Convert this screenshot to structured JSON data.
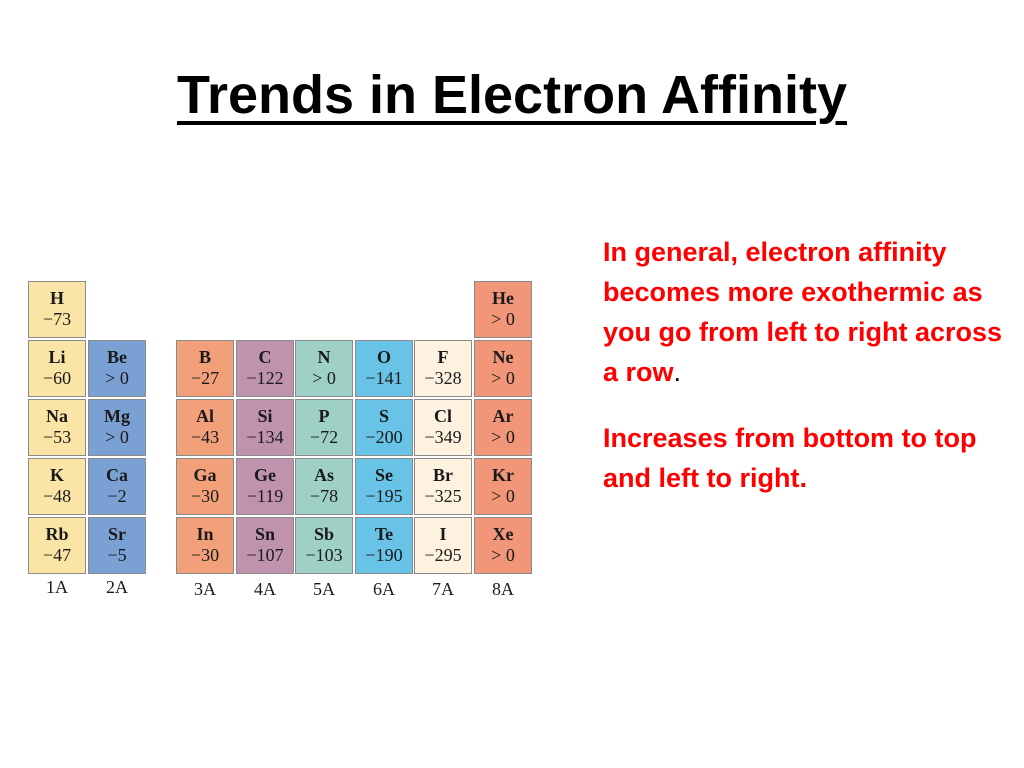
{
  "title": "Trends in Electron Affinity",
  "colors": {
    "group_1A": "#fbe5a6",
    "group_2A": "#7aa0d4",
    "group_3A": "#f2a07a",
    "group_4A": "#bf93ae",
    "group_5A": "#9fd0c5",
    "group_6A": "#68c3e6",
    "group_7A": "#fdf2df",
    "group_8A": "#f2967a",
    "bullet_text": "#ff0000"
  },
  "periodic_table": {
    "groups": [
      "1A",
      "2A",
      "3A",
      "4A",
      "5A",
      "6A",
      "7A",
      "8A"
    ],
    "elements": [
      {
        "symbol": "H",
        "value": "−73",
        "group": "1A",
        "period": 1
      },
      {
        "symbol": "He",
        "value": "> 0",
        "group": "8A",
        "period": 1
      },
      {
        "symbol": "Li",
        "value": "−60",
        "group": "1A",
        "period": 2
      },
      {
        "symbol": "Be",
        "value": "> 0",
        "group": "2A",
        "period": 2
      },
      {
        "symbol": "B",
        "value": "−27",
        "group": "3A",
        "period": 2
      },
      {
        "symbol": "C",
        "value": "−122",
        "group": "4A",
        "period": 2
      },
      {
        "symbol": "N",
        "value": "> 0",
        "group": "5A",
        "period": 2
      },
      {
        "symbol": "O",
        "value": "−141",
        "group": "6A",
        "period": 2
      },
      {
        "symbol": "F",
        "value": "−328",
        "group": "7A",
        "period": 2
      },
      {
        "symbol": "Ne",
        "value": "> 0",
        "group": "8A",
        "period": 2
      },
      {
        "symbol": "Na",
        "value": "−53",
        "group": "1A",
        "period": 3
      },
      {
        "symbol": "Mg",
        "value": "> 0",
        "group": "2A",
        "period": 3
      },
      {
        "symbol": "Al",
        "value": "−43",
        "group": "3A",
        "period": 3
      },
      {
        "symbol": "Si",
        "value": "−134",
        "group": "4A",
        "period": 3
      },
      {
        "symbol": "P",
        "value": "−72",
        "group": "5A",
        "period": 3
      },
      {
        "symbol": "S",
        "value": "−200",
        "group": "6A",
        "period": 3
      },
      {
        "symbol": "Cl",
        "value": "−349",
        "group": "7A",
        "period": 3
      },
      {
        "symbol": "Ar",
        "value": "> 0",
        "group": "8A",
        "period": 3
      },
      {
        "symbol": "K",
        "value": "−48",
        "group": "1A",
        "period": 4
      },
      {
        "symbol": "Ca",
        "value": "−2",
        "group": "2A",
        "period": 4
      },
      {
        "symbol": "Ga",
        "value": "−30",
        "group": "3A",
        "period": 4
      },
      {
        "symbol": "Ge",
        "value": "−119",
        "group": "4A",
        "period": 4
      },
      {
        "symbol": "As",
        "value": "−78",
        "group": "5A",
        "period": 4
      },
      {
        "symbol": "Se",
        "value": "−195",
        "group": "6A",
        "period": 4
      },
      {
        "symbol": "Br",
        "value": "−325",
        "group": "7A",
        "period": 4
      },
      {
        "symbol": "Kr",
        "value": "> 0",
        "group": "8A",
        "period": 4
      },
      {
        "symbol": "Rb",
        "value": "−47",
        "group": "1A",
        "period": 5
      },
      {
        "symbol": "Sr",
        "value": "−5",
        "group": "2A",
        "period": 5
      },
      {
        "symbol": "In",
        "value": "−30",
        "group": "3A",
        "period": 5
      },
      {
        "symbol": "Sn",
        "value": "−107",
        "group": "4A",
        "period": 5
      },
      {
        "symbol": "Sb",
        "value": "−103",
        "group": "5A",
        "period": 5
      },
      {
        "symbol": "Te",
        "value": "−190",
        "group": "6A",
        "period": 5
      },
      {
        "symbol": "I",
        "value": "−295",
        "group": "7A",
        "period": 5
      },
      {
        "symbol": "Xe",
        "value": "> 0",
        "group": "8A",
        "period": 5
      }
    ]
  },
  "bullets": {
    "p1": "In general, electron affinity becomes more exothermic as you go from left to right across a row",
    "p1_period": ".",
    "p2": "Increases from bottom to top and left to right."
  }
}
